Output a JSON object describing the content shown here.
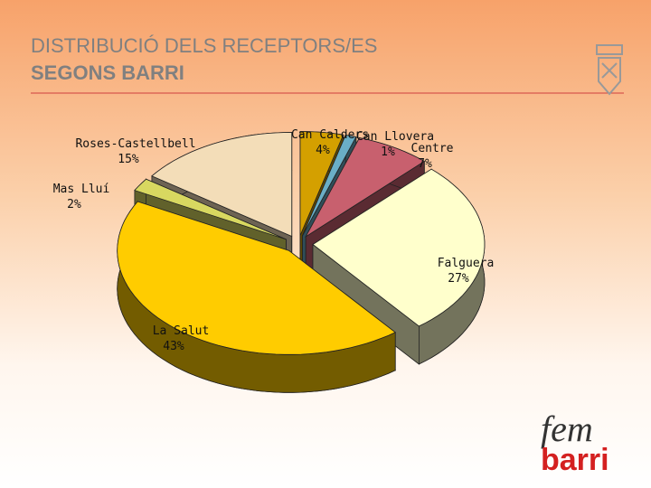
{
  "chart_data": {
    "type": "pie3d",
    "title": "DISTRIBUCIÓ DELS RECEPTORS/ES",
    "subtitle": "SEGONS BARRI",
    "categories": [
      "Can Calders",
      "Can Llovera",
      "Centre",
      "Falguera",
      "La Salut",
      "Mas Lluí",
      "Roses-Castellbell"
    ],
    "values": [
      4,
      1,
      7,
      27,
      43,
      2,
      15
    ],
    "value_labels": [
      "4%",
      "1%",
      "7%",
      "27%",
      "43%",
      "2%",
      "15%"
    ],
    "colors": [
      "#d4a000",
      "#6aaec6",
      "#c8606e",
      "#ffffcc",
      "#ffcc00",
      "#d8d860",
      "#f3ddb8"
    ]
  },
  "logo": {
    "line1": "fem",
    "line2": "barri"
  }
}
